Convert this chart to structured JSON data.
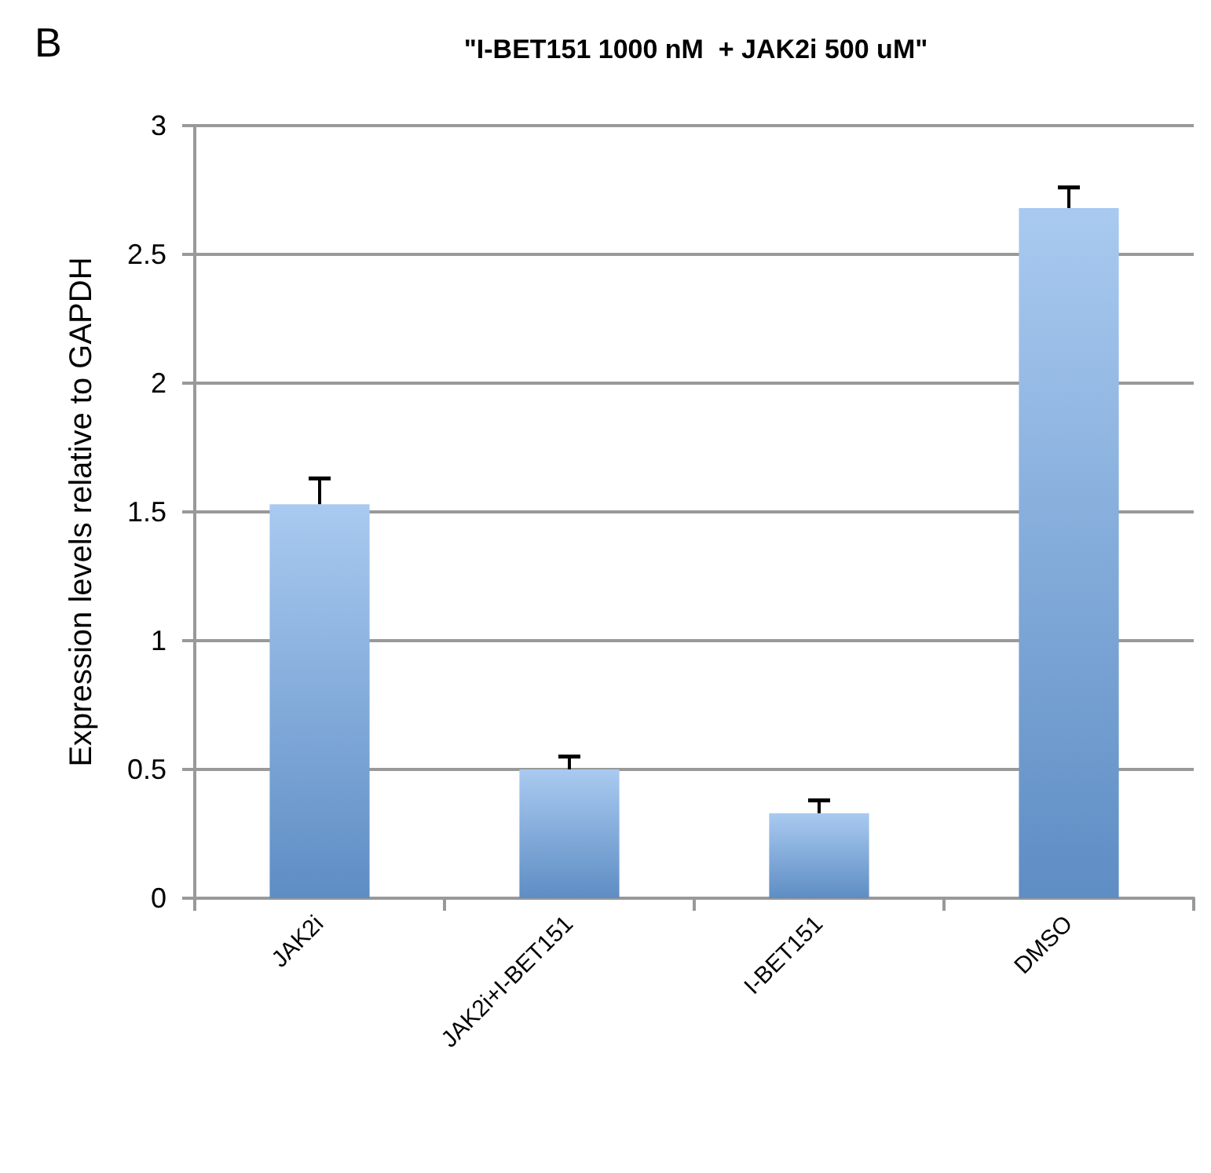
{
  "chart_data": {
    "type": "bar",
    "title": "\"I-BET151 1000 nM  + JAK2i 500 uM\"",
    "ylabel": "Expression levels relative to GAPDH",
    "annotations": [
      "B"
    ],
    "categories": [
      "JAK2i",
      "JAK2i+I-BET151",
      "I-BET151",
      "DMSO"
    ],
    "values": [
      1.53,
      0.5,
      0.33,
      2.68
    ],
    "errors": [
      [
        1.53,
        1.63
      ],
      [
        0.5,
        0.55
      ],
      [
        0.33,
        0.38
      ],
      [
        2.68,
        2.76
      ]
    ],
    "color": "#6fa6e6",
    "ylim": [
      0,
      3
    ],
    "yticks": [
      0,
      0.5,
      1,
      1.5,
      2,
      2.5,
      3
    ],
    "grid": "y"
  }
}
